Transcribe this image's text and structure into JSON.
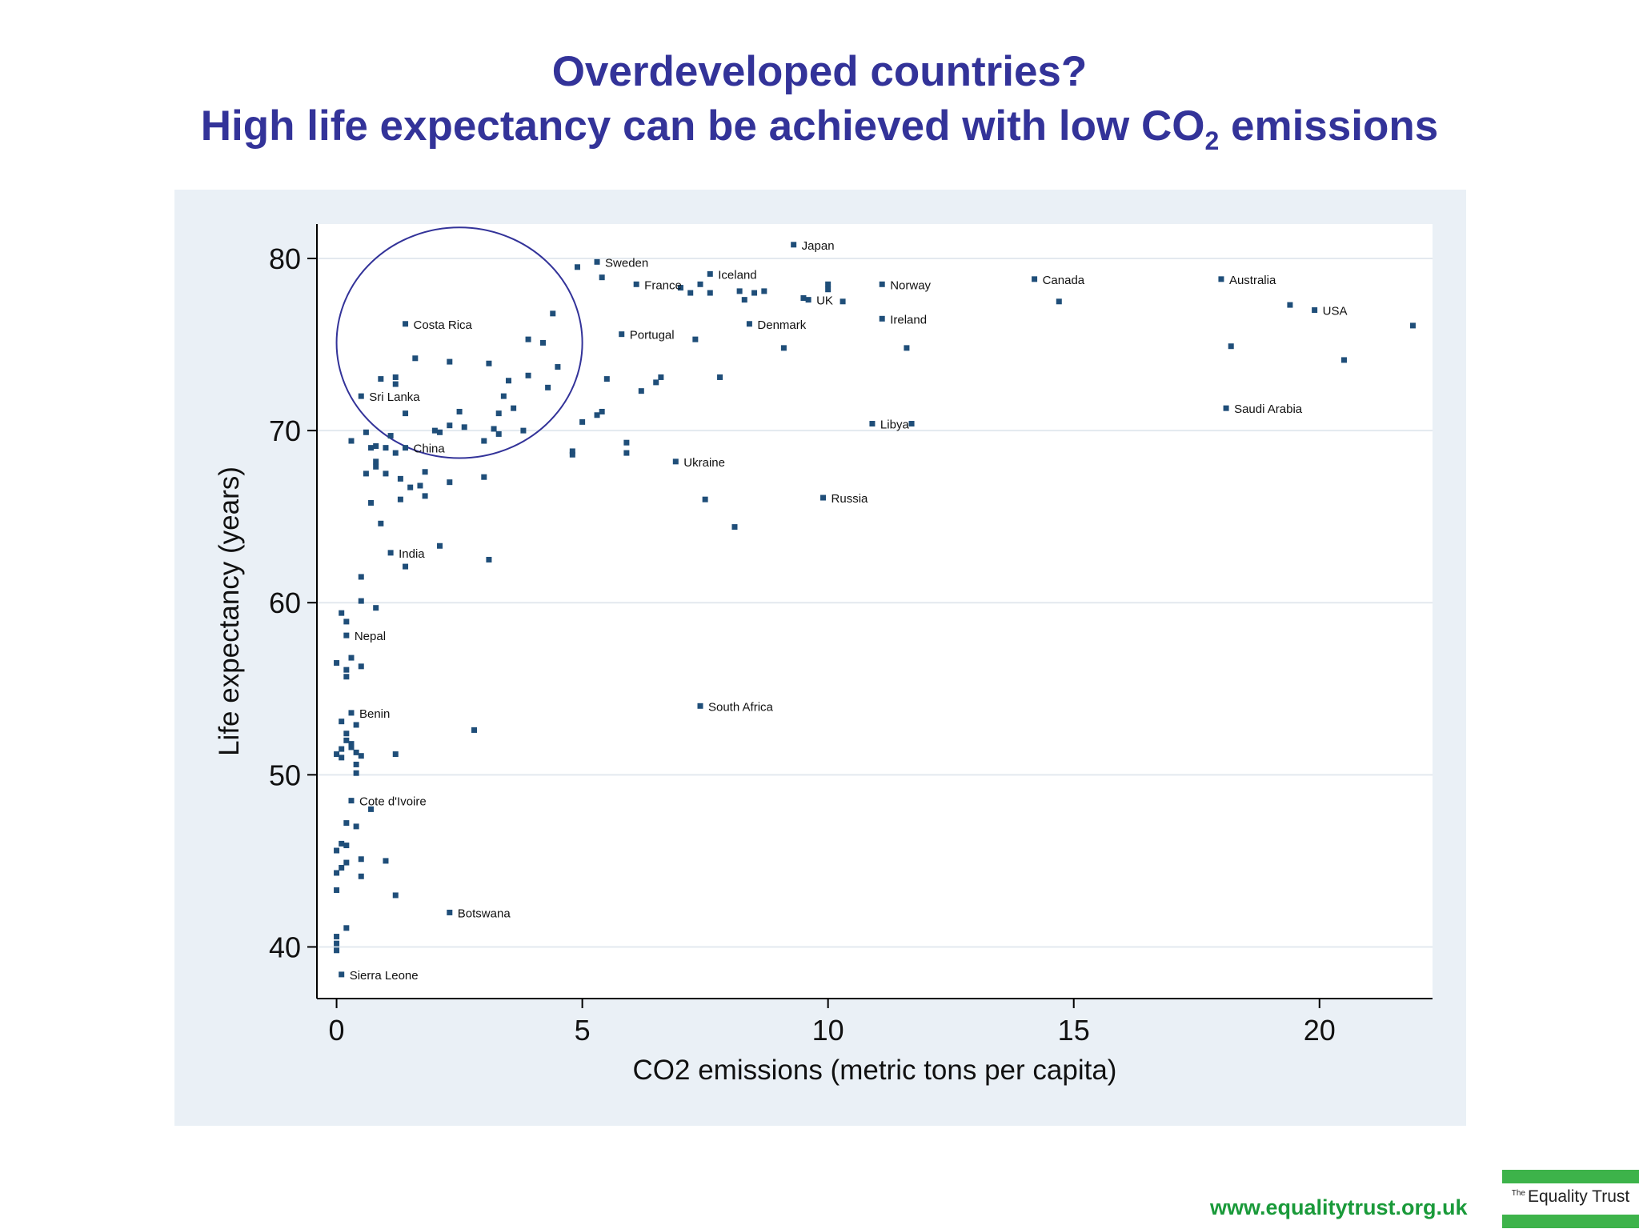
{
  "slide": {
    "title_line1": "Overdeveloped countries?",
    "title_line2_main": "High life expectancy can be achieved with low CO",
    "title_line2_sub": "2",
    "title_line2_end": " emissions",
    "footer_url": "www.equalitytrust.org.uk",
    "logo_the": "The",
    "logo_name": "Equality Trust",
    "colors": {
      "title": "#333399",
      "footer": "#1a9a3a",
      "logo_green": "#3db34a",
      "marker": "#1f4e79",
      "panel": "#eaf0f6"
    }
  },
  "chart_data": {
    "type": "scatter",
    "title": "",
    "xlabel": "CO2 emissions (metric tons per capita)",
    "ylabel": "Life expectancy (years)",
    "xlim": [
      -0.4,
      22.3
    ],
    "ylim": [
      37,
      82
    ],
    "xticks": [
      0,
      5,
      10,
      15,
      20
    ],
    "yticks": [
      40,
      50,
      60,
      70,
      80
    ],
    "grid": "horizontal",
    "highlight_circle": {
      "cx": 2.5,
      "cy": 75.1,
      "rx": 2.5,
      "ry": 6.7
    },
    "labeled_points": [
      {
        "label": "Japan",
        "x": 9.3,
        "y": 80.8
      },
      {
        "label": "Sweden",
        "x": 5.3,
        "y": 79.8
      },
      {
        "label": "Iceland",
        "x": 7.6,
        "y": 79.1
      },
      {
        "label": "France",
        "x": 6.1,
        "y": 78.5
      },
      {
        "label": "Canada",
        "x": 14.2,
        "y": 78.8
      },
      {
        "label": "Australia",
        "x": 18.0,
        "y": 78.8
      },
      {
        "label": "Norway",
        "x": 11.1,
        "y": 78.5
      },
      {
        "label": "UK",
        "x": 9.6,
        "y": 77.6
      },
      {
        "label": "USA",
        "x": 19.9,
        "y": 77.0
      },
      {
        "label": "Ireland",
        "x": 11.1,
        "y": 76.5
      },
      {
        "label": "Denmark",
        "x": 8.4,
        "y": 76.2
      },
      {
        "label": "Portugal",
        "x": 5.8,
        "y": 75.6
      },
      {
        "label": "Costa Rica",
        "x": 1.4,
        "y": 76.2
      },
      {
        "label": "Sri Lanka",
        "x": 0.5,
        "y": 72.0
      },
      {
        "label": "Saudi Arabia",
        "x": 18.1,
        "y": 71.3
      },
      {
        "label": "Libya",
        "x": 10.9,
        "y": 70.4
      },
      {
        "label": "China",
        "x": 1.4,
        "y": 69.0
      },
      {
        "label": "Ukraine",
        "x": 6.9,
        "y": 68.2
      },
      {
        "label": "Russia",
        "x": 9.9,
        "y": 66.1
      },
      {
        "label": "India",
        "x": 1.1,
        "y": 62.9
      },
      {
        "label": "Nepal",
        "x": 0.2,
        "y": 58.1
      },
      {
        "label": "South Africa",
        "x": 7.4,
        "y": 54.0
      },
      {
        "label": "Benin",
        "x": 0.3,
        "y": 53.6
      },
      {
        "label": "Cote d'Ivoire",
        "x": 0.3,
        "y": 48.5
      },
      {
        "label": "Botswana",
        "x": 2.3,
        "y": 42.0
      },
      {
        "label": "Sierra Leone",
        "x": 0.1,
        "y": 38.4
      }
    ],
    "points": [
      [
        4.9,
        79.5
      ],
      [
        5.4,
        78.9
      ],
      [
        7.0,
        78.3
      ],
      [
        7.2,
        78.0
      ],
      [
        7.4,
        78.5
      ],
      [
        7.6,
        78.0
      ],
      [
        8.2,
        78.1
      ],
      [
        8.3,
        77.6
      ],
      [
        8.5,
        78.0
      ],
      [
        8.7,
        78.1
      ],
      [
        9.5,
        77.7
      ],
      [
        10.0,
        78.5
      ],
      [
        10.0,
        78.2
      ],
      [
        10.3,
        77.5
      ],
      [
        14.7,
        77.5
      ],
      [
        19.4,
        77.3
      ],
      [
        21.9,
        76.1
      ],
      [
        7.3,
        75.3
      ],
      [
        9.1,
        74.8
      ],
      [
        11.6,
        74.8
      ],
      [
        18.2,
        74.9
      ],
      [
        20.5,
        74.1
      ],
      [
        7.8,
        73.1
      ],
      [
        5.0,
        70.5
      ],
      [
        5.3,
        70.9
      ],
      [
        5.4,
        71.1
      ],
      [
        5.5,
        73.0
      ],
      [
        6.2,
        72.3
      ],
      [
        6.5,
        72.8
      ],
      [
        6.6,
        73.1
      ],
      [
        5.9,
        69.3
      ],
      [
        5.9,
        68.7
      ],
      [
        4.8,
        68.8
      ],
      [
        4.8,
        68.6
      ],
      [
        11.7,
        70.4
      ],
      [
        7.5,
        66.0
      ],
      [
        8.1,
        64.4
      ],
      [
        4.4,
        76.8
      ],
      [
        3.9,
        75.3
      ],
      [
        4.2,
        75.1
      ],
      [
        4.5,
        73.7
      ],
      [
        3.1,
        73.9
      ],
      [
        3.9,
        73.2
      ],
      [
        3.5,
        72.9
      ],
      [
        4.3,
        72.5
      ],
      [
        3.4,
        72.0
      ],
      [
        3.6,
        71.3
      ],
      [
        3.3,
        71.0
      ],
      [
        3.2,
        70.1
      ],
      [
        3.3,
        69.8
      ],
      [
        3.0,
        69.4
      ],
      [
        3.8,
        70.0
      ],
      [
        2.3,
        74.0
      ],
      [
        2.5,
        71.1
      ],
      [
        2.3,
        70.3
      ],
      [
        2.6,
        70.2
      ],
      [
        2.0,
        70.0
      ],
      [
        2.1,
        69.9
      ],
      [
        1.6,
        74.2
      ],
      [
        0.9,
        73.0
      ],
      [
        1.2,
        73.1
      ],
      [
        1.2,
        72.7
      ],
      [
        1.4,
        71.0
      ],
      [
        0.6,
        69.9
      ],
      [
        0.8,
        69.1
      ],
      [
        1.0,
        69.0
      ],
      [
        1.1,
        69.7
      ],
      [
        0.3,
        69.4
      ],
      [
        0.7,
        69.0
      ],
      [
        0.8,
        68.2
      ],
      [
        0.8,
        67.9
      ],
      [
        1.2,
        68.7
      ],
      [
        1.0,
        67.5
      ],
      [
        1.3,
        67.2
      ],
      [
        1.8,
        67.6
      ],
      [
        2.3,
        67.0
      ],
      [
        3.0,
        67.3
      ],
      [
        0.6,
        67.5
      ],
      [
        1.5,
        66.7
      ],
      [
        1.7,
        66.8
      ],
      [
        1.8,
        66.2
      ],
      [
        0.7,
        65.8
      ],
      [
        1.3,
        66.0
      ],
      [
        0.9,
        64.6
      ],
      [
        2.1,
        63.3
      ],
      [
        1.4,
        62.1
      ],
      [
        3.1,
        62.5
      ],
      [
        0.5,
        61.5
      ],
      [
        0.1,
        59.4
      ],
      [
        0.2,
        58.9
      ],
      [
        0.5,
        60.1
      ],
      [
        0.8,
        59.7
      ],
      [
        0.3,
        56.8
      ],
      [
        0.0,
        56.5
      ],
      [
        0.2,
        56.1
      ],
      [
        0.2,
        55.7
      ],
      [
        0.5,
        56.3
      ],
      [
        0.1,
        53.1
      ],
      [
        0.4,
        52.9
      ],
      [
        0.2,
        52.4
      ],
      [
        0.2,
        52.0
      ],
      [
        0.1,
        51.5
      ],
      [
        0.1,
        51.0
      ],
      [
        0.0,
        51.2
      ],
      [
        0.3,
        51.6
      ],
      [
        0.4,
        51.3
      ],
      [
        0.5,
        51.1
      ],
      [
        0.3,
        51.8
      ],
      [
        0.4,
        50.6
      ],
      [
        0.4,
        50.1
      ],
      [
        1.2,
        51.2
      ],
      [
        2.8,
        52.6
      ],
      [
        0.7,
        48.0
      ],
      [
        0.2,
        47.2
      ],
      [
        0.4,
        47.0
      ],
      [
        0.0,
        45.6
      ],
      [
        0.1,
        46.0
      ],
      [
        0.2,
        45.9
      ],
      [
        0.5,
        45.1
      ],
      [
        0.1,
        44.6
      ],
      [
        0.2,
        44.9
      ],
      [
        0.0,
        44.3
      ],
      [
        0.5,
        44.1
      ],
      [
        0.0,
        43.3
      ],
      [
        1.0,
        45.0
      ],
      [
        1.2,
        43.0
      ],
      [
        0.2,
        41.1
      ],
      [
        0.0,
        40.6
      ],
      [
        0.0,
        40.2
      ],
      [
        0.0,
        39.8
      ]
    ]
  }
}
